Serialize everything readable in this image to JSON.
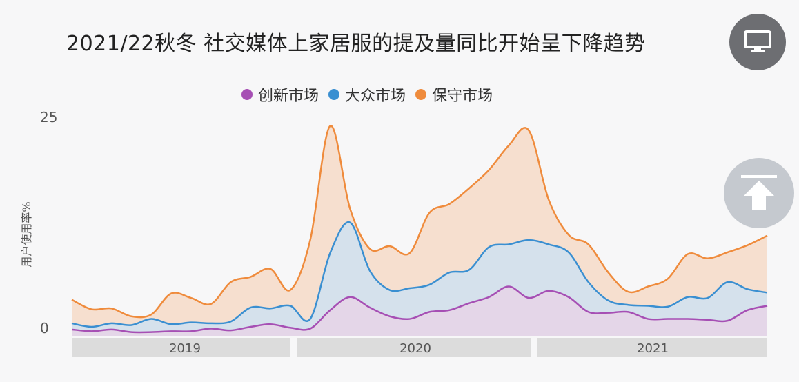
{
  "title": "2021/22秋冬 社交媒体上家居服的提及量同比开始呈下降趋势",
  "chart_data": {
    "type": "area",
    "stacked": true,
    "ylabel": "用户使用率%",
    "ylim": [
      0,
      25
    ],
    "yticks": [
      0,
      25
    ],
    "year_labels": [
      "2019",
      "2020",
      "2021"
    ],
    "legend_position": "top-center",
    "grid": false,
    "x": [
      0,
      1,
      2,
      3,
      4,
      5,
      6,
      7,
      8,
      9,
      10,
      11,
      12,
      13,
      14,
      15,
      16,
      17,
      18,
      19,
      20,
      21,
      22,
      23,
      24,
      25,
      26,
      27,
      28,
      29,
      30,
      31,
      32,
      33,
      34,
      35
    ],
    "series": [
      {
        "name": "创新市场",
        "color": "#a64fb4",
        "fill": "#e4d6e8",
        "values": [
          0.8,
          0.6,
          0.8,
          0.5,
          0.5,
          0.6,
          0.6,
          0.9,
          0.7,
          1.1,
          1.4,
          1.0,
          0.9,
          3.0,
          4.5,
          3.3,
          2.3,
          2.0,
          2.8,
          3.0,
          3.8,
          4.5,
          5.7,
          4.4,
          5.2,
          4.5,
          2.8,
          2.7,
          2.8,
          2.0,
          2.0,
          2.0,
          1.9,
          1.8,
          3.0,
          3.5
        ]
      },
      {
        "name": "大众市场",
        "color": "#3a8fd1",
        "fill": "#d5e1ec",
        "values": [
          0.7,
          0.5,
          0.7,
          0.8,
          1.5,
          0.8,
          1.0,
          0.6,
          1.0,
          2.2,
          1.8,
          2.5,
          1.1,
          6.5,
          8.5,
          4.2,
          3.0,
          3.5,
          3.1,
          4.3,
          3.8,
          5.7,
          4.8,
          6.6,
          5.3,
          5.1,
          3.4,
          1.4,
          0.8,
          1.5,
          1.4,
          2.5,
          2.5,
          4.4,
          2.4,
          1.5
        ]
      },
      {
        "name": "保守市场",
        "color": "#ef8b3c",
        "fill": "#f6dfcf",
        "values": [
          2.7,
          2.0,
          1.7,
          1.0,
          0.5,
          3.5,
          2.8,
          2.2,
          4.5,
          3.5,
          4.5,
          1.8,
          9.0,
          14.5,
          1.6,
          2.5,
          5.0,
          4.0,
          8.2,
          7.8,
          9.3,
          8.8,
          11.3,
          12.5,
          5.1,
          2.0,
          4.3,
          3.2,
          1.5,
          2.2,
          3.2,
          4.9,
          4.5,
          3.4,
          5.0,
          6.5
        ]
      }
    ]
  }
}
